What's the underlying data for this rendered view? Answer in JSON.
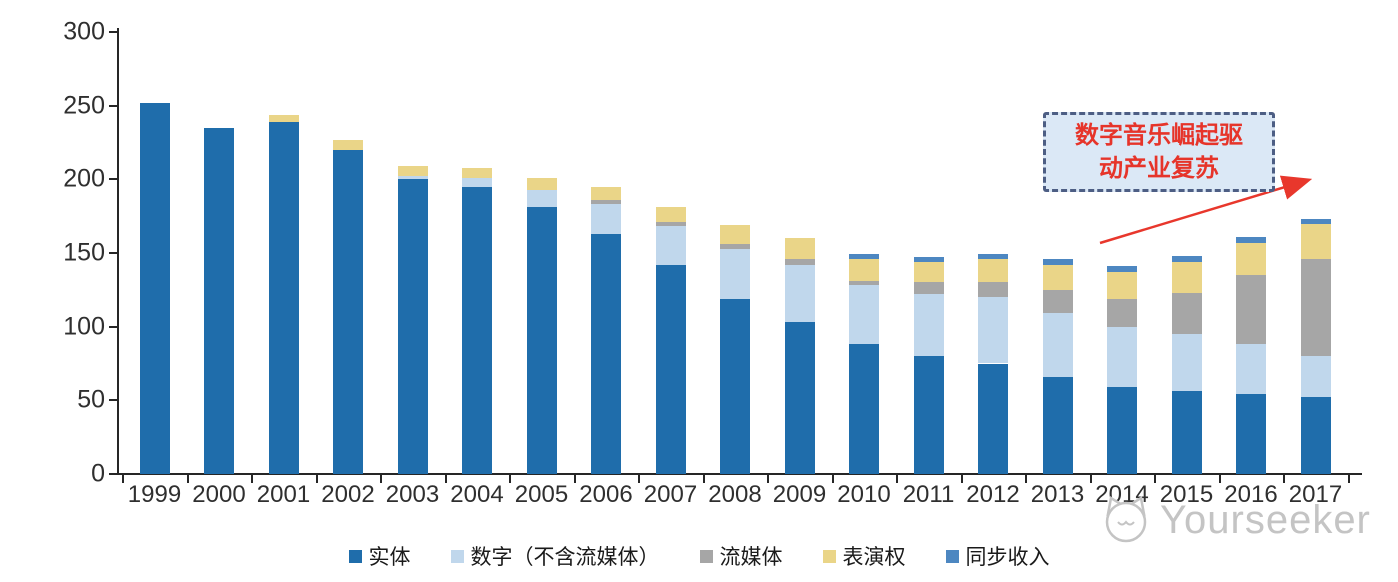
{
  "chart_data": {
    "type": "bar",
    "stacked": true,
    "title": "",
    "xlabel": "",
    "ylabel": "",
    "ylim": [
      0,
      300
    ],
    "yticks": [
      0,
      50,
      100,
      150,
      200,
      250,
      300
    ],
    "grid": false,
    "legend_position": "bottom",
    "categories": [
      "1999",
      "2000",
      "2001",
      "2002",
      "2003",
      "2004",
      "2005",
      "2006",
      "2007",
      "2008",
      "2009",
      "2010",
      "2011",
      "2012",
      "2013",
      "2014",
      "2015",
      "2016",
      "2017"
    ],
    "series": [
      {
        "name": "实体",
        "color": "#1f6dab",
        "values": [
          252,
          235,
          239,
          220,
          200,
          195,
          181,
          163,
          142,
          119,
          103,
          88,
          80,
          75,
          66,
          59,
          56,
          54,
          52
        ]
      },
      {
        "name": "数字（不含流媒体）",
        "color": "#c0d7ec",
        "values": [
          0,
          0,
          0,
          0,
          2,
          6,
          12,
          20,
          26,
          34,
          39,
          40,
          42,
          45,
          43,
          41,
          39,
          34,
          28
        ]
      },
      {
        "name": "流媒体",
        "color": "#a6a6a6",
        "values": [
          0,
          0,
          0,
          0,
          0,
          0,
          0,
          3,
          3,
          3,
          4,
          3,
          8,
          10,
          16,
          19,
          28,
          47,
          66
        ]
      },
      {
        "name": "表演权",
        "color": "#ead588",
        "values": [
          0,
          0,
          5,
          7,
          7,
          7,
          8,
          9,
          10,
          13,
          14,
          15,
          14,
          16,
          17,
          18,
          21,
          22,
          24
        ]
      },
      {
        "name": "同步收入",
        "color": "#4d87c1",
        "values": [
          0,
          0,
          0,
          0,
          0,
          0,
          0,
          0,
          0,
          0,
          0,
          3,
          3,
          3,
          4,
          4,
          4,
          4,
          3
        ]
      }
    ],
    "totals": [
      252,
      235,
      244,
      227,
      209,
      208,
      201,
      195,
      181,
      169,
      160,
      149,
      147,
      149,
      146,
      141,
      148,
      161,
      173
    ]
  },
  "annotation": {
    "line1": "数字音乐崛起驱",
    "line2": "动产业复苏",
    "text_color": "#e6342a",
    "box_fill": "#dbe8f6",
    "box_border": "#4d5e84",
    "arrow_color": "#e8372c"
  },
  "watermark": {
    "text": "Yourseeker",
    "icon": "cat-logo-icon",
    "color": "#c4c4c4"
  }
}
